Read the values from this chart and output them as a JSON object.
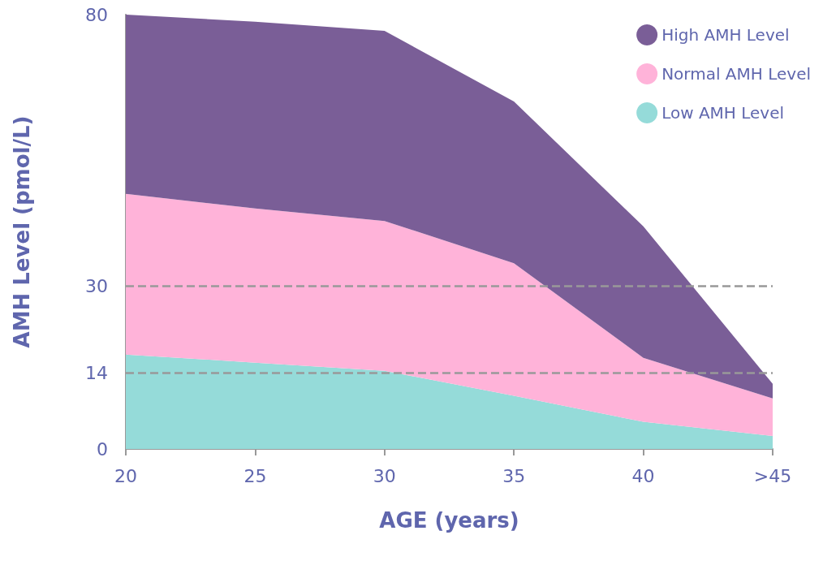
{
  "chart_data": {
    "type": "area",
    "stacked": true,
    "xlabel": "AGE (years)",
    "ylabel": "AMH Level (pmol/L)",
    "categories": [
      "20",
      "25",
      "30",
      "35",
      "40",
      ">45"
    ],
    "series": [
      {
        "name": "Low AMH Level",
        "color": "#95dbd9",
        "values": [
          17.4,
          15.9,
          14.4,
          9.8,
          5,
          2.4
        ]
      },
      {
        "name": "Normal AMH Level",
        "color": "#ffb3d9",
        "values": [
          29.6,
          28.4,
          27.6,
          24.4,
          11.8,
          6.9
        ]
      },
      {
        "name": "High AMH Level",
        "color": "#7a5e97",
        "values": [
          33,
          34.4,
          35,
          29.8,
          24.2,
          2.7
        ]
      }
    ],
    "ylim": [
      0,
      80
    ],
    "yticks": [
      0,
      14,
      30,
      80
    ],
    "grid": false,
    "legend": "top right",
    "marker": "none",
    "ref_lines": [
      {
        "axis": "y",
        "value": 30,
        "color": "#999999",
        "line_style": "dashed"
      },
      {
        "axis": "y",
        "value": 14,
        "color": "#999999",
        "line_style": "dashed"
      }
    ]
  }
}
